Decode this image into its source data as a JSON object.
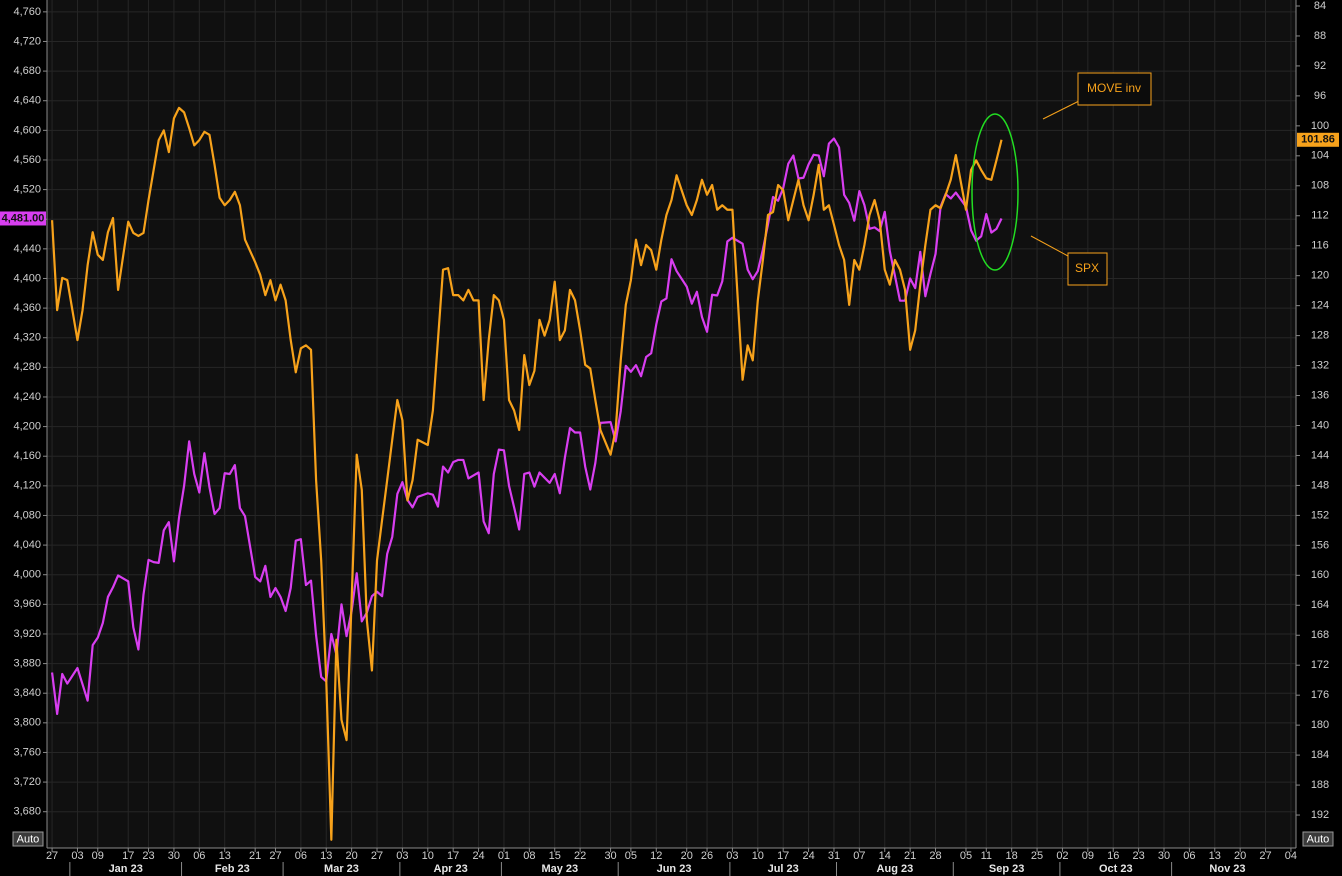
{
  "chart_data": {
    "type": "line",
    "grid": true,
    "left_axis_mode": "Auto",
    "right_axis_mode": "Auto",
    "xlim": [
      "2022-12-26",
      "2023-12-05"
    ],
    "ylim": [
      3631,
      4776
    ],
    "y2lim": [
      83.2,
      196.4
    ],
    "y2_inverted": true,
    "yticks": [
      {
        "value": 3680,
        "label": "3,680"
      },
      {
        "value": 3720,
        "label": "3,720"
      },
      {
        "value": 3760,
        "label": "3,760"
      },
      {
        "value": 3800,
        "label": "3,800"
      },
      {
        "value": 3840,
        "label": "3,840"
      },
      {
        "value": 3880,
        "label": "3,880"
      },
      {
        "value": 3920,
        "label": "3,920"
      },
      {
        "value": 3960,
        "label": "3,960"
      },
      {
        "value": 4000,
        "label": "4,000"
      },
      {
        "value": 4040,
        "label": "4,040"
      },
      {
        "value": 4080,
        "label": "4,080"
      },
      {
        "value": 4120,
        "label": "4,120"
      },
      {
        "value": 4160,
        "label": "4,160"
      },
      {
        "value": 4200,
        "label": "4,200"
      },
      {
        "value": 4240,
        "label": "4,240"
      },
      {
        "value": 4280,
        "label": "4,280"
      },
      {
        "value": 4320,
        "label": "4,320"
      },
      {
        "value": 4360,
        "label": "4,360"
      },
      {
        "value": 4400,
        "label": "4,400"
      },
      {
        "value": 4440,
        "label": "4,440"
      },
      {
        "value": 4480,
        "label": "4,480"
      },
      {
        "value": 4520,
        "label": "4,520"
      },
      {
        "value": 4560,
        "label": "4,560"
      },
      {
        "value": 4600,
        "label": "4,600"
      },
      {
        "value": 4640,
        "label": "4,640"
      },
      {
        "value": 4680,
        "label": "4,680"
      },
      {
        "value": 4720,
        "label": "4,720"
      },
      {
        "value": 4760,
        "label": "4,760"
      }
    ],
    "y2ticks": [
      84,
      88,
      92,
      96,
      100,
      104,
      108,
      112,
      116,
      120,
      124,
      128,
      132,
      136,
      140,
      144,
      148,
      152,
      156,
      160,
      164,
      168,
      172,
      176,
      180,
      184,
      188,
      192
    ],
    "xticks": [
      {
        "value": "2022-12-27",
        "label": "27"
      },
      {
        "value": "2023-01-03",
        "label": "03"
      },
      {
        "value": "2023-01-09",
        "label": "09"
      },
      {
        "value": "2023-01-17",
        "label": "17"
      },
      {
        "value": "2023-01-23",
        "label": "23"
      },
      {
        "value": "2023-01-30",
        "label": "30"
      },
      {
        "value": "2023-02-06",
        "label": "06"
      },
      {
        "value": "2023-02-13",
        "label": "13"
      },
      {
        "value": "2023-02-21",
        "label": "21"
      },
      {
        "value": "2023-02-27",
        "label": "27"
      },
      {
        "value": "2023-03-06",
        "label": "06"
      },
      {
        "value": "2023-03-13",
        "label": "13"
      },
      {
        "value": "2023-03-20",
        "label": "20"
      },
      {
        "value": "2023-03-27",
        "label": "27"
      },
      {
        "value": "2023-04-03",
        "label": "03"
      },
      {
        "value": "2023-04-10",
        "label": "10"
      },
      {
        "value": "2023-04-17",
        "label": "17"
      },
      {
        "value": "2023-04-24",
        "label": "24"
      },
      {
        "value": "2023-05-01",
        "label": "01"
      },
      {
        "value": "2023-05-08",
        "label": "08"
      },
      {
        "value": "2023-05-15",
        "label": "15"
      },
      {
        "value": "2023-05-22",
        "label": "22"
      },
      {
        "value": "2023-05-30",
        "label": "30"
      },
      {
        "value": "2023-06-05",
        "label": "05"
      },
      {
        "value": "2023-06-12",
        "label": "12"
      },
      {
        "value": "2023-06-20",
        "label": "20"
      },
      {
        "value": "2023-06-26",
        "label": "26"
      },
      {
        "value": "2023-07-03",
        "label": "03"
      },
      {
        "value": "2023-07-10",
        "label": "10"
      },
      {
        "value": "2023-07-17",
        "label": "17"
      },
      {
        "value": "2023-07-24",
        "label": "24"
      },
      {
        "value": "2023-07-31",
        "label": "31"
      },
      {
        "value": "2023-08-07",
        "label": "07"
      },
      {
        "value": "2023-08-14",
        "label": "14"
      },
      {
        "value": "2023-08-21",
        "label": "21"
      },
      {
        "value": "2023-08-28",
        "label": "28"
      },
      {
        "value": "2023-09-05",
        "label": "05"
      },
      {
        "value": "2023-09-11",
        "label": "11"
      },
      {
        "value": "2023-09-18",
        "label": "18"
      },
      {
        "value": "2023-09-25",
        "label": "25"
      },
      {
        "value": "2023-10-02",
        "label": "02"
      },
      {
        "value": "2023-10-09",
        "label": "09"
      },
      {
        "value": "2023-10-16",
        "label": "16"
      },
      {
        "value": "2023-10-23",
        "label": "23"
      },
      {
        "value": "2023-10-30",
        "label": "30"
      },
      {
        "value": "2023-11-06",
        "label": "06"
      },
      {
        "value": "2023-11-13",
        "label": "13"
      },
      {
        "value": "2023-11-20",
        "label": "20"
      },
      {
        "value": "2023-11-27",
        "label": "27"
      },
      {
        "value": "2023-12-04",
        "label": "04"
      }
    ],
    "x_groups": [
      {
        "value": "2023-01",
        "label": "Jan 23"
      },
      {
        "value": "2023-02",
        "label": "Feb 23"
      },
      {
        "value": "2023-03",
        "label": "Mar 23"
      },
      {
        "value": "2023-04",
        "label": "Apr 23"
      },
      {
        "value": "2023-05",
        "label": "May 23"
      },
      {
        "value": "2023-06",
        "label": "Jun 23"
      },
      {
        "value": "2023-07",
        "label": "Jul 23"
      },
      {
        "value": "2023-08",
        "label": "Aug 23"
      },
      {
        "value": "2023-09",
        "label": "Sep 23"
      },
      {
        "value": "2023-10",
        "label": "Oct 23"
      },
      {
        "value": "2023-11",
        "label": "Nov 23"
      }
    ],
    "x": [
      "2022-12-27",
      "2022-12-28",
      "2022-12-29",
      "2022-12-30",
      "2023-01-03",
      "2023-01-04",
      "2023-01-05",
      "2023-01-06",
      "2023-01-09",
      "2023-01-10",
      "2023-01-11",
      "2023-01-12",
      "2023-01-13",
      "2023-01-17",
      "2023-01-18",
      "2023-01-19",
      "2023-01-20",
      "2023-01-23",
      "2023-01-24",
      "2023-01-25",
      "2023-01-26",
      "2023-01-27",
      "2023-01-30",
      "2023-01-31",
      "2023-02-01",
      "2023-02-02",
      "2023-02-03",
      "2023-02-06",
      "2023-02-07",
      "2023-02-08",
      "2023-02-09",
      "2023-02-10",
      "2023-02-13",
      "2023-02-14",
      "2023-02-15",
      "2023-02-16",
      "2023-02-17",
      "2023-02-21",
      "2023-02-22",
      "2023-02-23",
      "2023-02-24",
      "2023-02-27",
      "2023-02-28",
      "2023-03-01",
      "2023-03-02",
      "2023-03-03",
      "2023-03-06",
      "2023-03-07",
      "2023-03-08",
      "2023-03-09",
      "2023-03-10",
      "2023-03-13",
      "2023-03-14",
      "2023-03-15",
      "2023-03-16",
      "2023-03-17",
      "2023-03-20",
      "2023-03-21",
      "2023-03-22",
      "2023-03-23",
      "2023-03-24",
      "2023-03-27",
      "2023-03-28",
      "2023-03-29",
      "2023-03-30",
      "2023-03-31",
      "2023-04-03",
      "2023-04-04",
      "2023-04-05",
      "2023-04-06",
      "2023-04-10",
      "2023-04-11",
      "2023-04-12",
      "2023-04-13",
      "2023-04-14",
      "2023-04-17",
      "2023-04-18",
      "2023-04-19",
      "2023-04-20",
      "2023-04-21",
      "2023-04-24",
      "2023-04-25",
      "2023-04-26",
      "2023-04-27",
      "2023-04-28",
      "2023-05-01",
      "2023-05-02",
      "2023-05-03",
      "2023-05-04",
      "2023-05-05",
      "2023-05-08",
      "2023-05-09",
      "2023-05-10",
      "2023-05-11",
      "2023-05-12",
      "2023-05-15",
      "2023-05-16",
      "2023-05-17",
      "2023-05-18",
      "2023-05-19",
      "2023-05-22",
      "2023-05-23",
      "2023-05-24",
      "2023-05-25",
      "2023-05-26",
      "2023-05-30",
      "2023-05-31",
      "2023-06-01",
      "2023-06-02",
      "2023-06-05",
      "2023-06-06",
      "2023-06-07",
      "2023-06-08",
      "2023-06-09",
      "2023-06-12",
      "2023-06-13",
      "2023-06-14",
      "2023-06-15",
      "2023-06-16",
      "2023-06-20",
      "2023-06-21",
      "2023-06-22",
      "2023-06-23",
      "2023-06-26",
      "2023-06-27",
      "2023-06-28",
      "2023-06-29",
      "2023-06-30",
      "2023-07-03",
      "2023-07-05",
      "2023-07-06",
      "2023-07-07",
      "2023-07-10",
      "2023-07-11",
      "2023-07-12",
      "2023-07-13",
      "2023-07-14",
      "2023-07-17",
      "2023-07-18",
      "2023-07-19",
      "2023-07-20",
      "2023-07-21",
      "2023-07-24",
      "2023-07-25",
      "2023-07-26",
      "2023-07-27",
      "2023-07-28",
      "2023-07-31",
      "2023-08-01",
      "2023-08-02",
      "2023-08-03",
      "2023-08-04",
      "2023-08-07",
      "2023-08-08",
      "2023-08-09",
      "2023-08-10",
      "2023-08-11",
      "2023-08-14",
      "2023-08-15",
      "2023-08-16",
      "2023-08-17",
      "2023-08-18",
      "2023-08-21",
      "2023-08-22",
      "2023-08-23",
      "2023-08-24",
      "2023-08-25",
      "2023-08-28",
      "2023-08-29",
      "2023-08-30",
      "2023-08-31",
      "2023-09-01",
      "2023-09-05",
      "2023-09-06",
      "2023-09-07",
      "2023-09-08",
      "2023-09-11",
      "2023-09-12",
      "2023-09-13",
      "2023-09-14"
    ],
    "series": [
      {
        "name": "SPX",
        "color": "#d83ef0",
        "axis": "y",
        "last_value_label": "4,481.00",
        "values": [
          3868,
          3812,
          3866,
          3853,
          3874,
          3852,
          3830,
          3905,
          3915,
          3935,
          3970,
          3983,
          3999,
          3991,
          3929,
          3899,
          3973,
          4020,
          4017,
          4016,
          4060,
          4071,
          4018,
          4077,
          4120,
          4180,
          4136,
          4111,
          4164,
          4118,
          4082,
          4090,
          4137,
          4136,
          4148,
          4090,
          4079,
          3997,
          3991,
          4012,
          3970,
          3982,
          3970,
          3951,
          3982,
          4046,
          4048,
          3986,
          3992,
          3918,
          3862,
          3856,
          3920,
          3892,
          3960,
          3917,
          3951,
          4002,
          3937,
          3949,
          3971,
          3977,
          3971,
          4028,
          4051,
          4109,
          4125,
          4101,
          4091,
          4105,
          4110,
          4108,
          4092,
          4146,
          4138,
          4152,
          4155,
          4155,
          4130,
          4134,
          4138,
          4072,
          4056,
          4136,
          4169,
          4168,
          4120,
          4091,
          4061,
          4136,
          4138,
          4119,
          4138,
          4131,
          4124,
          4136,
          4110,
          4158,
          4198,
          4192,
          4192,
          4146,
          4115,
          4151,
          4205,
          4206,
          4180,
          4221,
          4282,
          4274,
          4283,
          4268,
          4294,
          4299,
          4338,
          4369,
          4373,
          4426,
          4410,
          4389,
          4366,
          4382,
          4348,
          4328,
          4378,
          4377,
          4396,
          4450,
          4455,
          4447,
          4412,
          4399,
          4410,
          4439,
          4473,
          4510,
          4505,
          4522,
          4555,
          4566,
          4535,
          4536,
          4554,
          4567,
          4566,
          4538,
          4582,
          4589,
          4577,
          4513,
          4502,
          4478,
          4518,
          4499,
          4467,
          4469,
          4464,
          4490,
          4437,
          4404,
          4370,
          4370,
          4400,
          4387,
          4436,
          4376,
          4406,
          4433,
          4497,
          4514,
          4508,
          4516,
          4497,
          4465,
          4451,
          4457,
          4487,
          4462,
          4467,
          4481
        ]
      },
      {
        "name": "MOVE inv",
        "color": "#f7a21b",
        "axis": "y2",
        "last_value_label": "101.86",
        "values": [
          112.6,
          124.6,
          120.3,
          120.6,
          128.6,
          124.6,
          118.6,
          114.2,
          117.2,
          117.9,
          114.2,
          112.3,
          121.9,
          112.8,
          114.3,
          114.7,
          114.3,
          109.9,
          105.9,
          101.9,
          100.6,
          103.5,
          99.0,
          97.6,
          98.2,
          100.3,
          102.6,
          101.9,
          100.8,
          101.2,
          105.2,
          109.6,
          110.6,
          109.9,
          108.8,
          110.6,
          115.2,
          118.2,
          119.9,
          122.6,
          120.6,
          123.3,
          121.2,
          123.3,
          128.6,
          132.9,
          129.7,
          129.3,
          129.9,
          147.3,
          158.0,
          174.0,
          195.3,
          168.6,
          179.3,
          182.0,
          163.3,
          143.9,
          148.6,
          166.0,
          172.7,
          158.0,
          152.6,
          147.3,
          141.9,
          136.6,
          139.3,
          150.0,
          147.3,
          141.9,
          142.6,
          138.0,
          128.6,
          119.2,
          119.0,
          122.6,
          122.6,
          123.3,
          121.9,
          123.3,
          123.3,
          136.6,
          128.6,
          122.6,
          123.3,
          125.9,
          136.6,
          138.0,
          140.6,
          130.6,
          134.6,
          132.7,
          125.9,
          128.0,
          125.9,
          120.8,
          128.6,
          127.3,
          121.9,
          123.3,
          127.3,
          131.9,
          132.4,
          136.6,
          140.6,
          143.9,
          140.6,
          131.3,
          123.9,
          120.6,
          115.2,
          118.6,
          115.9,
          116.6,
          119.2,
          115.2,
          111.9,
          109.9,
          106.6,
          110.6,
          111.9,
          109.9,
          107.2,
          109.2,
          107.9,
          111.2,
          110.6,
          111.2,
          111.2,
          133.9,
          129.3,
          131.3,
          123.3,
          117.9,
          111.9,
          111.5,
          107.9,
          108.6,
          112.6,
          109.9,
          107.2,
          110.6,
          112.6,
          109.2,
          105.2,
          111.2,
          110.6,
          113.2,
          115.9,
          117.9,
          123.9,
          117.9,
          119.2,
          115.9,
          111.9,
          109.9,
          112.6,
          119.2,
          121.2,
          117.9,
          119.2,
          121.9,
          129.9,
          127.3,
          121.2,
          115.9,
          111.2,
          110.6,
          111.0,
          109.2,
          107.2,
          103.9,
          111.2,
          105.9,
          104.6,
          105.9,
          107.0,
          107.2,
          104.6,
          101.86
        ]
      }
    ]
  }
}
